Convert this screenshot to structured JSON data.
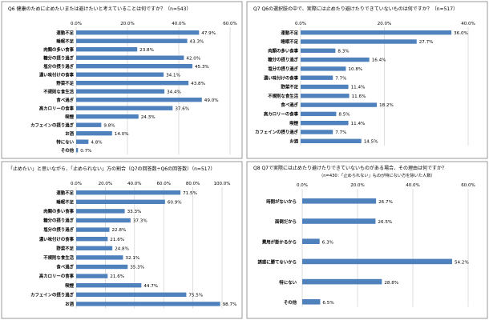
{
  "chart_data": [
    {
      "type": "bar",
      "orientation": "horizontal",
      "title": "Q6 健康のために止めたいまたは避けたいと考えていることは何ですか？（n=543）",
      "subtitle": "",
      "xlim": [
        0,
        60
      ],
      "ticks": [
        "0.0%",
        "20.0%",
        "40.0%",
        "60.0%"
      ],
      "grid": true,
      "categories": [
        "運動不足",
        "睡眠不足",
        "肉類の多い食事",
        "糖分の摂り過ぎ",
        "塩分の摂り過ぎ",
        "濃い味付けの食事",
        "野菜不足",
        "不規則な食生活",
        "食べ過ぎ",
        "高カロリーの食事",
        "喫煙",
        "カフェインの摂り過ぎ",
        "お酒",
        "特にない",
        "その他"
      ],
      "values": [
        47.9,
        43.3,
        23.8,
        42.0,
        45.3,
        34.1,
        43.8,
        34.4,
        49.0,
        37.6,
        24.3,
        9.8,
        14.0,
        4.8,
        0.7
      ],
      "value_labels": [
        "47.9%",
        "43.3%",
        "23.8%",
        "42.0%",
        "45.3%",
        "34.1%",
        "43.8%",
        "34.4%",
        "49.0%",
        "37.6%",
        "24.3%",
        "9.8%",
        "14.0%",
        "4.8%",
        "0.7%"
      ]
    },
    {
      "type": "bar",
      "orientation": "horizontal",
      "title": "Q7 Q6の選択肢の中で、実際には止めたり避けたりできていないものは何ですか？（n=517）",
      "subtitle": "",
      "xlim": [
        0,
        40
      ],
      "ticks": [
        "0.0%",
        "20.0%",
        "40.0%"
      ],
      "grid": true,
      "categories": [
        "運動不足",
        "睡眠不足",
        "肉類の多い食事",
        "糖分の摂り過ぎ",
        "塩分の摂り過ぎ",
        "濃い味付けの食事",
        "野菜不足",
        "不規則な食生活",
        "食べ過ぎ",
        "高カロリーの食事",
        "喫煙",
        "カフェインの摂り過ぎ",
        "お酒"
      ],
      "values": [
        36.0,
        27.7,
        8.3,
        16.4,
        10.8,
        7.7,
        11.4,
        11.6,
        18.2,
        8.5,
        11.4,
        7.7,
        14.5
      ],
      "value_labels": [
        "36.0%",
        "27.7%",
        "8.3%",
        "16.4%",
        "10.8%",
        "7.7%",
        "11.4%",
        "11.6%",
        "18.2%",
        "8.5%",
        "11.4%",
        "7.7%",
        "14.5%"
      ]
    },
    {
      "type": "bar",
      "orientation": "horizontal",
      "title": "「止めたい」と思いながら、「止められない」方の割合（Q7の回答数÷Q6の回答数）（n=517）",
      "subtitle": "",
      "xlim": [
        0,
        100
      ],
      "ticks": [
        "0.0%",
        "20.0%",
        "40.0%",
        "60.0%",
        "80.0%",
        "100.0%"
      ],
      "grid": true,
      "categories": [
        "運動不足",
        "睡眠不足",
        "肉類の多い食事",
        "糖分の摂り過ぎ",
        "塩分の摂り過ぎ",
        "濃い味付けの食事",
        "野菜不足",
        "不規則な食生活",
        "食べ過ぎ",
        "高カロリーの食事",
        "喫煙",
        "カフェインの摂り過ぎ",
        "お酒"
      ],
      "values": [
        71.5,
        60.9,
        33.3,
        37.3,
        22.8,
        21.6,
        24.8,
        32.1,
        35.3,
        21.6,
        44.7,
        75.5,
        98.7
      ],
      "value_labels": [
        "71.5%",
        "60.9%",
        "33.3%",
        "37.3%",
        "22.8%",
        "21.6%",
        "24.8%",
        "32.1%",
        "35.3%",
        "21.6%",
        "44.7%",
        "75.5%",
        "98.7%"
      ]
    },
    {
      "type": "bar",
      "orientation": "horizontal",
      "title": "Q8 Q7で実際には止めたり避けたりできていないものがある場合、その理由は何ですか？",
      "subtitle": "（n=430：「止められない」ものが特にない方を除いた人数）",
      "xlim": [
        0,
        60
      ],
      "ticks": [
        "0.0%",
        "20.0%",
        "40.0%",
        "60.0%"
      ],
      "grid": true,
      "categories": [
        "時間がないから",
        "面倒だから",
        "費用が掛かるから",
        "誘惑に勝てないから",
        "特にない",
        "その他"
      ],
      "values": [
        26.7,
        26.5,
        6.3,
        54.2,
        28.8,
        6.5
      ],
      "value_labels": [
        "26.7%",
        "26.5%",
        "6.3%",
        "54.2%",
        "28.8%",
        "6.5%"
      ]
    }
  ]
}
